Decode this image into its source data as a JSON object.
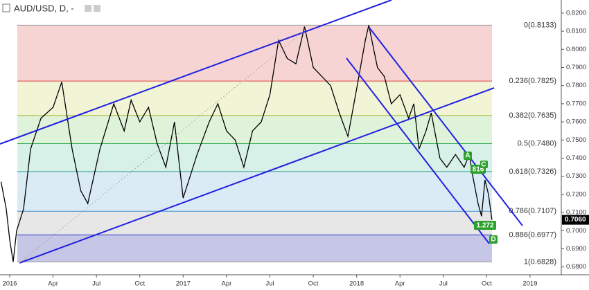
{
  "chart_data": {
    "type": "line",
    "title": "AUD/USD, D, -",
    "color": "#000000",
    "x": [
      2015.95,
      2015.98,
      2016.0,
      2016.02,
      2016.04,
      2016.08,
      2016.12,
      2016.18,
      2016.25,
      2016.3,
      2016.36,
      2016.41,
      2016.45,
      2016.52,
      2016.6,
      2016.66,
      2016.7,
      2016.75,
      2016.8,
      2016.85,
      2016.9,
      2016.95,
      2017.0,
      2017.08,
      2017.15,
      2017.2,
      2017.25,
      2017.3,
      2017.35,
      2017.4,
      2017.45,
      2017.5,
      2017.55,
      2017.6,
      2017.65,
      2017.7,
      2017.75,
      2017.8,
      2017.85,
      2017.9,
      2017.95,
      2018.0,
      2018.05,
      2018.07,
      2018.12,
      2018.16,
      2018.2,
      2018.25,
      2018.3,
      2018.33,
      2018.36,
      2018.4,
      2018.43,
      2018.48,
      2018.52,
      2018.57,
      2018.62,
      2018.65,
      2018.67,
      2018.7,
      2018.72,
      2018.74,
      2018.76,
      2018.78
    ],
    "series": [
      {
        "values": [
          0.727,
          0.712,
          0.695,
          0.6828,
          0.7,
          0.712,
          0.745,
          0.762,
          0.768,
          0.782,
          0.745,
          0.722,
          0.715,
          0.745,
          0.77,
          0.755,
          0.772,
          0.76,
          0.768,
          0.748,
          0.735,
          0.76,
          0.718,
          0.742,
          0.76,
          0.77,
          0.755,
          0.75,
          0.735,
          0.755,
          0.76,
          0.775,
          0.805,
          0.795,
          0.792,
          0.8125,
          0.79,
          0.785,
          0.78,
          0.765,
          0.752,
          0.778,
          0.805,
          0.8133,
          0.79,
          0.785,
          0.77,
          0.775,
          0.762,
          0.77,
          0.745,
          0.755,
          0.765,
          0.74,
          0.735,
          0.742,
          0.735,
          0.742,
          0.73,
          0.715,
          0.708,
          0.728,
          0.72,
          0.706
        ]
      }
    ],
    "ylim": [
      0.6757,
      0.8272
    ],
    "yticks": [
      {
        "value": 0.68,
        "label": "0.6800"
      },
      {
        "value": 0.69,
        "label": "0.6900"
      },
      {
        "value": 0.7,
        "label": "0.7000"
      },
      {
        "value": 0.71,
        "label": "0.7100"
      },
      {
        "value": 0.72,
        "label": "0.7200"
      },
      {
        "value": 0.73,
        "label": "0.7300"
      },
      {
        "value": 0.74,
        "label": "0.7400"
      },
      {
        "value": 0.75,
        "label": "0.7500"
      },
      {
        "value": 0.76,
        "label": "0.7600"
      },
      {
        "value": 0.77,
        "label": "0.7700"
      },
      {
        "value": 0.78,
        "label": "0.7800"
      },
      {
        "value": 0.79,
        "label": "0.7900"
      },
      {
        "value": 0.8,
        "label": "0.8000"
      },
      {
        "value": 0.81,
        "label": "0.8100"
      },
      {
        "value": 0.82,
        "label": "0.8200"
      }
    ],
    "xlim": [
      2015.944,
      2019.18
    ],
    "xticks": [
      {
        "value": 2016.0,
        "label": "2016"
      },
      {
        "value": 2016.25,
        "label": "Apr"
      },
      {
        "value": 2016.5,
        "label": "Jul"
      },
      {
        "value": 2016.75,
        "label": "Oct"
      },
      {
        "value": 2017.0,
        "label": "2017"
      },
      {
        "value": 2017.25,
        "label": "Apr"
      },
      {
        "value": 2017.5,
        "label": "Jul"
      },
      {
        "value": 2017.75,
        "label": "Oct"
      },
      {
        "value": 2018.0,
        "label": "2018"
      },
      {
        "value": 2018.25,
        "label": "Apr"
      },
      {
        "value": 2018.5,
        "label": "Jul"
      },
      {
        "value": 2018.75,
        "label": "Oct"
      },
      {
        "value": 2019.0,
        "label": "2019"
      }
    ],
    "grid": false,
    "fib_levels": [
      {
        "label": "0(0.8133)",
        "price": 0.8133,
        "color": "#999999",
        "fill": "#f5cccc"
      },
      {
        "label": "0.236(0.7825)",
        "price": 0.7825,
        "color": "#e04040",
        "fill": "#eef3cf"
      },
      {
        "label": "0.382(0.7635)",
        "price": 0.7635,
        "color": "#a0b020",
        "fill": "#d9f1d3"
      },
      {
        "label": "0.5(0.7480)",
        "price": 0.748,
        "color": "#30b050",
        "fill": "#d0ede4"
      },
      {
        "label": "0.618(0.7326)",
        "price": 0.7326,
        "color": "#30a090",
        "fill": "#d4e7f4"
      },
      {
        "label": "0.786(0.7107)",
        "price": 0.7107,
        "color": "#4090d0",
        "fill": "#e3e3e3"
      },
      {
        "label": "0.886(0.6977)",
        "price": 0.6977,
        "color": "#3030c0",
        "fill": "#bcbce2"
      },
      {
        "label": "1(0.6828)",
        "price": 0.6828,
        "color": "#999999",
        "fill": "#bcbce2"
      }
    ],
    "last_price": {
      "value": 0.706,
      "label": "0.7060"
    },
    "annotations": [
      "A",
      "816",
      "C",
      "1.272",
      "D"
    ]
  }
}
